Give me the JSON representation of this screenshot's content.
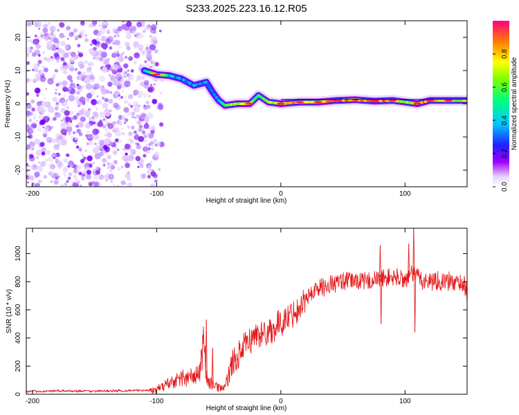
{
  "title": "S233.2025.223.16.12.R05",
  "colors": {
    "snr_line": "#e41a1c",
    "ridge": [
      "#9f00ff",
      "#3c3cff",
      "#00c8ff",
      "#00ff80",
      "#ffff00",
      "#ff3030"
    ]
  },
  "chart_data": [
    {
      "type": "heatmap",
      "name": "spectrogram",
      "xlabel": "Height of straight line (km)",
      "ylabel": "Frequency (Hz)",
      "xlim": [
        -205,
        150
      ],
      "ylim": [
        -25,
        25
      ],
      "xticks": [
        -200,
        -100,
        0,
        100
      ],
      "xtick_labels": [
        "-200",
        "-100",
        "0",
        "100"
      ],
      "yticks": [
        20,
        10,
        0,
        -10,
        -20
      ],
      "ytick_labels": [
        "20",
        "10",
        "0",
        "-10",
        "-20"
      ],
      "noise_region_x": [
        -205,
        -100
      ],
      "ridge": [
        {
          "x": -110,
          "f": 10.0,
          "amp": 0.35
        },
        {
          "x": -100,
          "f": 8.8,
          "amp": 0.9
        },
        {
          "x": -90,
          "f": 8.5,
          "amp": 0.45
        },
        {
          "x": -80,
          "f": 7.5,
          "amp": 0.3
        },
        {
          "x": -70,
          "f": 5.5,
          "amp": 0.35
        },
        {
          "x": -60,
          "f": 6.5,
          "amp": 0.3
        },
        {
          "x": -55,
          "f": 3.5,
          "amp": 0.25
        },
        {
          "x": -50,
          "f": 1.0,
          "amp": 0.3
        },
        {
          "x": -45,
          "f": -0.5,
          "amp": 0.55
        },
        {
          "x": -35,
          "f": 0.0,
          "amp": 0.7
        },
        {
          "x": -25,
          "f": 0.0,
          "amp": 0.75
        },
        {
          "x": -18,
          "f": 2.5,
          "amp": 0.45
        },
        {
          "x": -10,
          "f": 0.5,
          "amp": 0.7
        },
        {
          "x": 0,
          "f": 0.0,
          "amp": 0.75
        },
        {
          "x": 15,
          "f": 0.5,
          "amp": 0.85
        },
        {
          "x": 30,
          "f": 0.5,
          "amp": 0.75
        },
        {
          "x": 45,
          "f": 1.0,
          "amp": 0.9
        },
        {
          "x": 60,
          "f": 1.2,
          "amp": 0.8
        },
        {
          "x": 75,
          "f": 0.8,
          "amp": 0.9
        },
        {
          "x": 90,
          "f": 1.0,
          "amp": 0.85
        },
        {
          "x": 100,
          "f": 0.5,
          "amp": 0.55
        },
        {
          "x": 110,
          "f": 0.0,
          "amp": 0.8
        },
        {
          "x": 120,
          "f": 1.0,
          "amp": 0.9
        },
        {
          "x": 135,
          "f": 1.0,
          "amp": 0.75
        },
        {
          "x": 150,
          "f": 1.0,
          "amp": 0.7
        }
      ],
      "colorbar": {
        "label": "Normalized spectral amplitude",
        "range": [
          0,
          1
        ],
        "ticks": [
          0.0,
          0.2,
          0.4,
          0.6,
          0.8
        ],
        "tick_labels": [
          "0.0",
          "0.2",
          "0.4",
          "0.6",
          "0.8"
        ]
      }
    },
    {
      "type": "line",
      "name": "snr",
      "xlabel": "Height of straight line (km)",
      "ylabel": "SNR (10 * v/v)",
      "xlim": [
        -205,
        150
      ],
      "ylim": [
        0,
        1180
      ],
      "xticks": [
        -200,
        -100,
        0,
        100
      ],
      "xtick_labels": [
        "-200",
        "-100",
        "0",
        "100"
      ],
      "yticks": [
        0,
        200,
        400,
        600,
        800,
        1000
      ],
      "ytick_labels": [
        "0",
        "200",
        "400",
        "600",
        "800",
        "1000"
      ],
      "series": [
        {
          "name": "SNR",
          "x": [
            -205,
            -190,
            -170,
            -150,
            -130,
            -110,
            -100,
            -95,
            -90,
            -85,
            -80,
            -75,
            -70,
            -65,
            -62,
            -60,
            -58,
            -55,
            -50,
            -45,
            -40,
            -35,
            -30,
            -25,
            -20,
            -15,
            -10,
            -5,
            0,
            5,
            10,
            15,
            20,
            25,
            30,
            40,
            50,
            60,
            70,
            80,
            90,
            100,
            108,
            115,
            125,
            135,
            145,
            150
          ],
          "y": [
            20,
            22,
            25,
            22,
            25,
            28,
            30,
            60,
            80,
            100,
            120,
            110,
            130,
            160,
            450,
            110,
            80,
            70,
            50,
            40,
            200,
            260,
            330,
            380,
            420,
            430,
            450,
            470,
            510,
            540,
            580,
            620,
            680,
            720,
            750,
            780,
            800,
            810,
            800,
            820,
            830,
            820,
            860,
            800,
            810,
            800,
            790,
            760
          ]
        }
      ],
      "spikes": [
        {
          "x": -60,
          "y": 530
        },
        {
          "x": -55,
          "y": 330
        },
        {
          "x": 80,
          "y": 1060
        },
        {
          "x": 80.7,
          "y": 500
        },
        {
          "x": 103,
          "y": 1070
        },
        {
          "x": 107,
          "y": 1180
        },
        {
          "x": 108,
          "y": 440
        },
        {
          "x": 150,
          "y": 650
        }
      ]
    }
  ]
}
